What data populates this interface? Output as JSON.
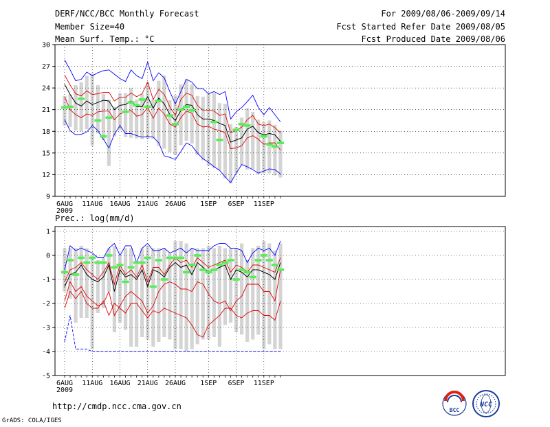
{
  "header": {
    "title": "DERF/NCC/BCC Monthly Forecast",
    "member_size": "Member Size=40",
    "temp_label": "Mean Surf. Temp.: °C",
    "forecast_period": "For 2009/08/06-2009/09/14",
    "started_refer": "Fcst Started Refer Date 2009/08/05",
    "produced": "Fcst Produced Date 2009/08/06"
  },
  "footer": {
    "url": "http://cmdp.ncc.cma.gov.cn",
    "grads": "GrADS: COLA/IGES",
    "logo_bcc": "BCC",
    "logo_ncc": "NCC"
  },
  "colors": {
    "envelope": "#0000ff",
    "spread": "#dd0000",
    "mean": "#000000",
    "marker": "#55ee55",
    "bar": "#d4d4d4"
  },
  "chart_data": [
    {
      "type": "line",
      "title": "Mean Surf. Temp.: °C",
      "x_dates": [
        "6AUG",
        "7AUG",
        "8AUG",
        "9AUG",
        "10AUG",
        "11AUG",
        "12AUG",
        "13AUG",
        "14AUG",
        "15AUG",
        "16AUG",
        "17AUG",
        "18AUG",
        "19AUG",
        "20AUG",
        "21AUG",
        "22AUG",
        "23AUG",
        "24AUG",
        "25AUG",
        "26AUG",
        "27AUG",
        "28AUG",
        "29AUG",
        "30AUG",
        "31AUG",
        "1SEP",
        "2SEP",
        "3SEP",
        "4SEP",
        "5SEP",
        "6SEP",
        "7SEP",
        "8SEP",
        "9SEP",
        "10SEP",
        "11SEP",
        "12SEP",
        "13SEP",
        "14SEP"
      ],
      "xtick_labels": [
        {
          "i": 0,
          "label": "6AUG",
          "sub": "2009"
        },
        {
          "i": 5,
          "label": "11AUG"
        },
        {
          "i": 10,
          "label": "16AUG"
        },
        {
          "i": 15,
          "label": "21AUG"
        },
        {
          "i": 20,
          "label": "26AUG"
        },
        {
          "i": 26,
          "label": "1SEP"
        },
        {
          "i": 31,
          "label": "6SEP"
        },
        {
          "i": 36,
          "label": "11SEP"
        }
      ],
      "ylim": [
        9,
        30
      ],
      "yticks": [
        9,
        12,
        15,
        18,
        21,
        24,
        27,
        30
      ],
      "grid": "dotted",
      "series": [
        {
          "name": "max",
          "color": "blue",
          "values": [
            27.9,
            26.5,
            25.0,
            25.2,
            26.2,
            25.7,
            26.1,
            26.4,
            26.5,
            25.9,
            25.3,
            24.9,
            26.5,
            25.7,
            25.3,
            27.6,
            25.0,
            26.1,
            25.4,
            23.5,
            21.8,
            23.5,
            25.2,
            24.8,
            23.9,
            23.9,
            23.2,
            23.5,
            23.1,
            23.5,
            19.7,
            20.7,
            21.3,
            22.1,
            23.0,
            21.3,
            20.3,
            21.3,
            20.3,
            19.3
          ]
        },
        {
          "name": "upper",
          "color": "red",
          "values": [
            25.8,
            24.4,
            23.2,
            22.9,
            23.6,
            23.1,
            23.2,
            23.4,
            23.4,
            22.2,
            22.7,
            22.7,
            23.3,
            22.8,
            23.2,
            24.8,
            22.4,
            23.8,
            23.1,
            21.4,
            20.2,
            22.4,
            23.3,
            23.0,
            21.6,
            20.9,
            20.9,
            20.8,
            20.2,
            20.4,
            17.8,
            18.1,
            18.6,
            19.6,
            20.2,
            19.0,
            18.8,
            19.0,
            18.5,
            17.8
          ]
        },
        {
          "name": "mean",
          "color": "black",
          "values": [
            24.5,
            23.1,
            21.9,
            21.5,
            22.2,
            21.7,
            22.0,
            22.3,
            22.2,
            21.0,
            21.6,
            21.7,
            22.2,
            21.4,
            21.4,
            22.8,
            21.2,
            22.6,
            21.8,
            20.3,
            19.5,
            20.9,
            21.7,
            21.6,
            20.3,
            19.7,
            19.7,
            19.5,
            19.1,
            18.8,
            16.5,
            16.8,
            17.1,
            18.3,
            18.7,
            17.8,
            17.5,
            17.7,
            17.5,
            16.6
          ]
        },
        {
          "name": "lower",
          "color": "red",
          "values": [
            22.8,
            21.0,
            20.3,
            19.9,
            20.4,
            20.2,
            20.7,
            20.8,
            20.8,
            19.6,
            20.4,
            20.7,
            20.9,
            20.1,
            20.3,
            21.3,
            19.8,
            21.2,
            20.4,
            19.0,
            18.6,
            19.9,
            20.8,
            20.5,
            19.0,
            18.6,
            18.7,
            18.3,
            18.1,
            17.8,
            15.6,
            15.7,
            16.0,
            17.1,
            17.4,
            16.9,
            16.2,
            16.4,
            16.4,
            15.4
          ]
        },
        {
          "name": "min",
          "color": "blue",
          "values": [
            19.6,
            18.1,
            17.5,
            17.6,
            17.9,
            18.8,
            18.1,
            16.9,
            15.7,
            17.6,
            18.8,
            17.7,
            17.7,
            17.4,
            17.2,
            17.3,
            17.2,
            16.4,
            14.6,
            14.4,
            14.1,
            15.2,
            16.4,
            16.0,
            15.0,
            14.2,
            13.7,
            13.1,
            12.6,
            11.7,
            10.9,
            12.2,
            13.4,
            13.1,
            12.7,
            12.2,
            12.5,
            12.8,
            12.7,
            12.1
          ]
        }
      ],
      "bars": {
        "name": "member range",
        "low": [
          18.8,
          18.6,
          18.1,
          18.0,
          18.3,
          16.0,
          17.7,
          16.8,
          13.2,
          17.3,
          18.2,
          17.2,
          17.1,
          17.0,
          16.9,
          16.9,
          17.0,
          16.0,
          15.6,
          15.1,
          14.7,
          16.1,
          16.7,
          16.3,
          14.7,
          14.0,
          13.2,
          12.9,
          12.6,
          11.5,
          10.8,
          12.2,
          13.3,
          12.7,
          12.8,
          12.1,
          12.2,
          12.2,
          11.9,
          11.6
        ],
        "high": [
          22.9,
          23.1,
          24.4,
          24.8,
          25.7,
          26.0,
          24.4,
          23.2,
          22.4,
          21.4,
          23.3,
          23.3,
          24.0,
          22.4,
          23.2,
          24.8,
          22.4,
          25.0,
          25.7,
          22.3,
          23.0,
          24.5,
          25.2,
          24.5,
          22.9,
          22.8,
          23.2,
          23.3,
          21.9,
          21.8,
          19.0,
          18.6,
          19.9,
          21.2,
          20.7,
          19.6,
          19.3,
          19.5,
          18.9,
          18.1
        ]
      },
      "markers": {
        "name": "observed/ensemble marker",
        "values": [
          21.3,
          21.4,
          null,
          22.5,
          null,
          null,
          19.5,
          17.3,
          19.9,
          null,
          null,
          20.7,
          22.0,
          21.6,
          22.4,
          21.4,
          null,
          22.2,
          null,
          20.2,
          19.0,
          21.0,
          21.4,
          20.9,
          null,
          null,
          null,
          19.3,
          16.8,
          null,
          null,
          18.2,
          19.0,
          18.8,
          null,
          null,
          17.3,
          16.2,
          15.9,
          16.4
        ]
      }
    },
    {
      "type": "line",
      "title": "Prec.: log(mm/d)",
      "x_dates": [
        "6AUG",
        "7AUG",
        "8AUG",
        "9AUG",
        "10AUG",
        "11AUG",
        "12AUG",
        "13AUG",
        "14AUG",
        "15AUG",
        "16AUG",
        "17AUG",
        "18AUG",
        "19AUG",
        "20AUG",
        "21AUG",
        "22AUG",
        "23AUG",
        "24AUG",
        "25AUG",
        "26AUG",
        "27AUG",
        "28AUG",
        "29AUG",
        "30AUG",
        "31AUG",
        "1SEP",
        "2SEP",
        "3SEP",
        "4SEP",
        "5SEP",
        "6SEP",
        "7SEP",
        "8SEP",
        "9SEP",
        "10SEP",
        "11SEP",
        "12SEP",
        "13SEP",
        "14SEP"
      ],
      "xtick_labels": [
        {
          "i": 0,
          "label": "6AUG",
          "sub": "2009"
        },
        {
          "i": 5,
          "label": "11AUG"
        },
        {
          "i": 10,
          "label": "16AUG"
        },
        {
          "i": 15,
          "label": "21AUG"
        },
        {
          "i": 20,
          "label": "26AUG"
        },
        {
          "i": 26,
          "label": "1SEP"
        },
        {
          "i": 31,
          "label": "6SEP"
        },
        {
          "i": 36,
          "label": "11SEP"
        }
      ],
      "ylim": [
        -5,
        1.2
      ],
      "yticks": [
        -5,
        -4,
        -3,
        -2,
        -1,
        0,
        1
      ],
      "grid": "dotted",
      "series": [
        {
          "name": "max",
          "color": "blue",
          "values": [
            -0.6,
            0.4,
            0.2,
            0.3,
            0.2,
            0.1,
            -0.1,
            -0.1,
            0.3,
            0.5,
            0.0,
            0.4,
            0.4,
            -0.3,
            0.3,
            0.5,
            0.2,
            0.2,
            0.3,
            0.1,
            0.2,
            0.3,
            0.1,
            0.3,
            0.2,
            0.2,
            0.2,
            0.4,
            0.5,
            0.5,
            0.3,
            0.3,
            0.2,
            -0.3,
            0.1,
            0.3,
            0.2,
            0.3,
            0.0,
            0.6
          ]
        },
        {
          "name": "upper",
          "color": "red",
          "values": [
            -1.1,
            -0.6,
            -0.5,
            -0.3,
            -0.6,
            -0.8,
            -1.0,
            -0.7,
            -0.3,
            -1.2,
            -0.4,
            -0.8,
            -0.6,
            -0.9,
            -0.4,
            -1.1,
            -0.5,
            -0.5,
            -0.8,
            -0.4,
            -0.1,
            -0.3,
            -0.2,
            -0.5,
            -0.1,
            -0.3,
            -0.5,
            -0.4,
            -0.3,
            -0.2,
            -0.7,
            -0.4,
            -0.5,
            -0.7,
            -0.4,
            -0.4,
            -0.5,
            -0.6,
            -0.7,
            -0.1
          ]
        },
        {
          "name": "mean",
          "color": "black",
          "values": [
            -1.3,
            -0.8,
            -0.7,
            -0.4,
            -0.8,
            -1.0,
            -1.1,
            -0.9,
            -0.4,
            -1.5,
            -0.6,
            -0.9,
            -0.8,
            -1.0,
            -0.6,
            -1.3,
            -0.6,
            -0.7,
            -0.9,
            -0.5,
            -0.3,
            -0.5,
            -0.4,
            -0.8,
            -0.3,
            -0.5,
            -0.7,
            -0.6,
            -0.5,
            -0.4,
            -1.0,
            -0.6,
            -0.7,
            -0.9,
            -0.6,
            -0.6,
            -0.7,
            -0.8,
            -1.0,
            -0.3
          ]
        },
        {
          "name": "lower",
          "color": "red",
          "values": [
            -1.9,
            -1.1,
            -1.5,
            -1.3,
            -1.7,
            -1.9,
            -2.1,
            -2.0,
            -1.5,
            -2.5,
            -2.1,
            -1.7,
            -1.5,
            -1.7,
            -1.9,
            -2.4,
            -2.1,
            -1.5,
            -1.2,
            -1.1,
            -1.2,
            -1.4,
            -1.4,
            -1.5,
            -1.1,
            -1.2,
            -1.6,
            -1.9,
            -2.0,
            -1.9,
            -2.3,
            -1.9,
            -1.7,
            -1.2,
            -1.2,
            -1.2,
            -1.5,
            -1.5,
            -1.9,
            -0.6
          ]
        },
        {
          "name": "min",
          "color": "blue",
          "values": [
            -3.6,
            -2.5,
            -3.9,
            -3.9,
            -3.9,
            -4.0,
            -4.0,
            -4.0,
            -4.0,
            -4.0,
            -4.0,
            -4.0,
            -4.0,
            -4.0,
            -4.0,
            -4.0,
            -4.0,
            -4.0,
            -4.0,
            -4.0,
            -4.0,
            -4.0,
            -4.0,
            -4.0,
            -4.0,
            -4.0,
            -4.0,
            -4.0,
            -4.0,
            -4.0,
            -4.0,
            -4.0,
            -4.0,
            -4.0,
            -4.0,
            -4.0,
            -4.0,
            -4.0,
            -4.0,
            -4.0
          ]
        },
        {
          "name": "spread-low",
          "color": "red",
          "values": [
            -2.2,
            -1.5,
            -1.8,
            -1.5,
            -2.0,
            -2.2,
            -2.2,
            -1.9,
            -2.5,
            -2.0,
            -2.2,
            -2.4,
            -2.0,
            -2.0,
            -2.3,
            -2.6,
            -2.3,
            -2.4,
            -2.2,
            -2.3,
            -2.4,
            -2.5,
            -2.6,
            -2.9,
            -3.3,
            -3.4,
            -2.9,
            -2.7,
            -2.5,
            -2.2,
            -2.2,
            -2.5,
            -2.6,
            -2.4,
            -2.3,
            -2.3,
            -2.5,
            -2.5,
            -2.7,
            -1.9
          ]
        }
      ],
      "bars": {
        "name": "member range",
        "low": [
          -1.5,
          -1.8,
          -2.8,
          -2.6,
          -2.6,
          -3.9,
          -2.4,
          -2.2,
          -1.5,
          -3.2,
          -2.8,
          -3.1,
          -3.8,
          -3.8,
          -3.4,
          -3.5,
          -3.8,
          -3.6,
          -3.4,
          -3.5,
          -3.9,
          -3.9,
          -4.0,
          -3.9,
          -3.7,
          -3.5,
          -3.5,
          -3.4,
          -3.8,
          -2.9,
          -2.8,
          -3.2,
          -3.3,
          -3.6,
          -3.5,
          -3.3,
          -3.9,
          -3.7,
          -3.9,
          -3.9
        ],
        "high": [
          0.3,
          0.3,
          0.3,
          0.4,
          0.3,
          0.0,
          -0.2,
          -0.1,
          0.3,
          0.4,
          0.0,
          0.3,
          0.3,
          -0.3,
          0.3,
          0.4,
          0.3,
          0.3,
          0.3,
          0.1,
          0.6,
          0.6,
          0.5,
          0.3,
          0.3,
          0.3,
          0.4,
          0.3,
          0.4,
          0.3,
          0.3,
          0.3,
          0.5,
          -0.2,
          0.3,
          0.4,
          0.6,
          0.5,
          0.2,
          0.5
        ]
      },
      "markers": {
        "name": "observed/ensemble marker",
        "values": [
          -0.7,
          -0.2,
          -0.8,
          -0.1,
          -0.3,
          -0.1,
          -0.3,
          -0.3,
          0.0,
          -0.5,
          -0.4,
          -1.1,
          -0.5,
          -0.3,
          -0.3,
          -0.1,
          -1.3,
          -0.2,
          -1.0,
          -0.1,
          -0.1,
          -0.1,
          -0.7,
          -0.4,
          0.0,
          -0.6,
          -0.7,
          -0.6,
          -0.4,
          -0.3,
          -0.2,
          -1.0,
          -0.6,
          -0.7,
          -0.9,
          -0.2,
          0.0,
          -0.2,
          -0.4,
          -0.6
        ]
      }
    }
  ]
}
